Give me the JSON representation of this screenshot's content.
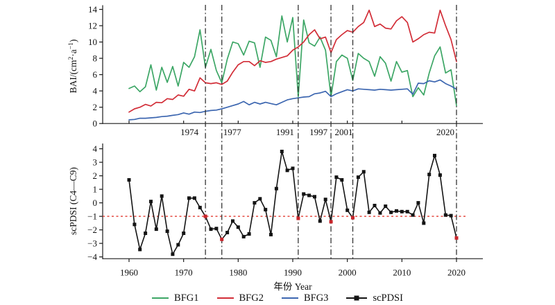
{
  "colors": {
    "bfg1": "#3CA665",
    "bfg2": "#D22D37",
    "bfg3": "#3C66B0",
    "scpdsi": "#141414",
    "threshold_red": "#E2382F",
    "highlight_marker": "#C9252B",
    "drought_line": "#2B2B2B",
    "axis": "#1A1A1A"
  },
  "legend": {
    "items": [
      {
        "label": "BFG1",
        "color": "#3CA665",
        "marker": false
      },
      {
        "label": "BFG2",
        "color": "#D22D37",
        "marker": false
      },
      {
        "label": "BFG3",
        "color": "#3C66B0",
        "marker": false
      },
      {
        "label": "scPDSI",
        "color": "#141414",
        "marker": true
      }
    ]
  },
  "chart_data": [
    {
      "type": "line",
      "title": "",
      "ylabel": "BAI/(cm²·a⁻¹)",
      "ylabel_parts": [
        {
          "t": "BAI/(cm"
        },
        {
          "t": "2",
          "sup": true
        },
        {
          "t": "·a"
        },
        {
          "t": "−1",
          "sup": true
        },
        {
          "t": ")"
        }
      ],
      "ylim": [
        0,
        14
      ],
      "yticks": [
        0,
        2,
        4,
        6,
        8,
        10,
        12,
        14
      ],
      "xlim": [
        1955,
        2025
      ],
      "x_range": [
        1960,
        2020
      ],
      "x_decade_ticks": [
        1960,
        1970,
        1980,
        1990,
        2000,
        2010,
        2020
      ],
      "drought_years": [
        1974,
        1977,
        1991,
        1997,
        2001,
        2020
      ],
      "drought_labels": [
        {
          "text": "1974",
          "year": 1974,
          "dx": -23
        },
        {
          "text": "1977",
          "year": 1977,
          "dx": 15
        },
        {
          "text": "1991",
          "year": 1991,
          "dx": -19
        },
        {
          "text": "1997",
          "year": 1997,
          "dx": -18
        },
        {
          "text": "2001",
          "year": 2001,
          "dx": -13
        },
        {
          "text": "2020",
          "year": 2020,
          "dx": -16
        }
      ],
      "grid": false,
      "series": [
        {
          "name": "BFG1",
          "color": "#3CA665",
          "values": [
            4.3,
            4.6,
            3.9,
            4.5,
            7.2,
            4.1,
            6.9,
            5.05,
            7.0,
            4.6,
            7.5,
            6.9,
            8.2,
            11.5,
            6.9,
            9.1,
            6.5,
            5.0,
            7.9,
            10.0,
            9.8,
            8.4,
            10.1,
            9.9,
            6.9,
            10.6,
            10.2,
            8.2,
            13.2,
            10.0,
            13.0,
            3.3,
            12.7,
            9.9,
            9.5,
            10.6,
            9.0,
            3.3,
            7.6,
            8.4,
            8.0,
            5.3,
            8.6,
            8.0,
            7.6,
            5.8,
            8.2,
            7.4,
            5.2,
            7.6,
            6.3,
            6.5,
            3.3,
            4.4,
            3.5,
            6.2,
            8.3,
            9.4,
            6.2,
            6.6,
            2.2
          ]
        },
        {
          "name": "BFG2",
          "color": "#D22D37",
          "values": [
            1.4,
            1.8,
            2.0,
            2.35,
            2.15,
            2.6,
            2.55,
            3.05,
            2.95,
            3.5,
            3.35,
            4.2,
            4.0,
            5.6,
            5.0,
            4.9,
            5.0,
            4.8,
            5.2,
            6.3,
            7.2,
            7.6,
            7.6,
            7.1,
            7.7,
            7.5,
            7.6,
            7.9,
            8.1,
            8.3,
            9.0,
            9.4,
            10.0,
            10.9,
            11.5,
            10.4,
            10.6,
            8.7,
            10.3,
            10.9,
            11.4,
            11.2,
            11.9,
            12.4,
            13.9,
            11.9,
            12.2,
            11.7,
            11.6,
            12.6,
            13.1,
            12.4,
            10.0,
            10.4,
            10.9,
            11.2,
            11.1,
            13.9,
            12.0,
            10.3,
            7.6
          ]
        },
        {
          "name": "BFG3",
          "color": "#3C66B0",
          "values": [
            0.45,
            0.5,
            0.65,
            0.65,
            0.7,
            0.75,
            0.85,
            0.9,
            1.0,
            1.1,
            1.3,
            1.15,
            1.4,
            1.35,
            1.5,
            1.6,
            1.65,
            1.8,
            2.0,
            2.2,
            2.4,
            2.7,
            2.3,
            2.6,
            2.4,
            2.6,
            2.45,
            2.3,
            2.6,
            2.9,
            3.05,
            3.15,
            3.25,
            3.3,
            3.65,
            3.75,
            3.95,
            3.3,
            3.65,
            3.9,
            4.15,
            4.0,
            4.25,
            4.2,
            4.15,
            4.1,
            4.2,
            4.15,
            4.1,
            4.15,
            4.2,
            4.25,
            3.6,
            4.95,
            4.9,
            5.25,
            5.1,
            5.35,
            4.9,
            4.6,
            4.2
          ]
        }
      ]
    },
    {
      "type": "line-scatter",
      "name": "scPDSI",
      "ylabel": "scPDSI (C4—C9)",
      "xlabel": "年份 Year",
      "ylim": [
        -4.2,
        4.4
      ],
      "yticks": [
        4,
        3,
        2,
        1,
        0,
        -1,
        -2,
        -3,
        -4
      ],
      "xticks": [
        1960,
        1970,
        1980,
        1990,
        2000,
        2010,
        2020
      ],
      "xlim": [
        1955,
        2025
      ],
      "x_range": [
        1960,
        2020
      ],
      "threshold": -1,
      "highlight_years": [
        1974,
        1977,
        1991,
        1997,
        2001,
        2020
      ],
      "grid": false,
      "values": [
        1.7,
        -1.6,
        -3.45,
        -2.25,
        0.1,
        -1.95,
        0.5,
        -2.1,
        -3.8,
        -3.1,
        -2.25,
        0.35,
        0.35,
        -0.35,
        -1.0,
        -1.95,
        -1.9,
        -2.7,
        -2.2,
        -1.35,
        -1.8,
        -2.5,
        -2.3,
        0.0,
        0.3,
        -0.5,
        -2.35,
        1.05,
        3.8,
        2.4,
        2.55,
        -1.15,
        0.65,
        0.55,
        0.45,
        -1.35,
        0.25,
        -1.4,
        1.9,
        1.7,
        -0.55,
        -1.1,
        1.9,
        2.3,
        -0.7,
        -0.2,
        -0.75,
        -0.25,
        -0.7,
        -0.6,
        -0.65,
        -0.65,
        -0.9,
        0.0,
        -1.5,
        2.1,
        3.5,
        2.05,
        -0.9,
        -0.95,
        -2.6
      ]
    }
  ]
}
